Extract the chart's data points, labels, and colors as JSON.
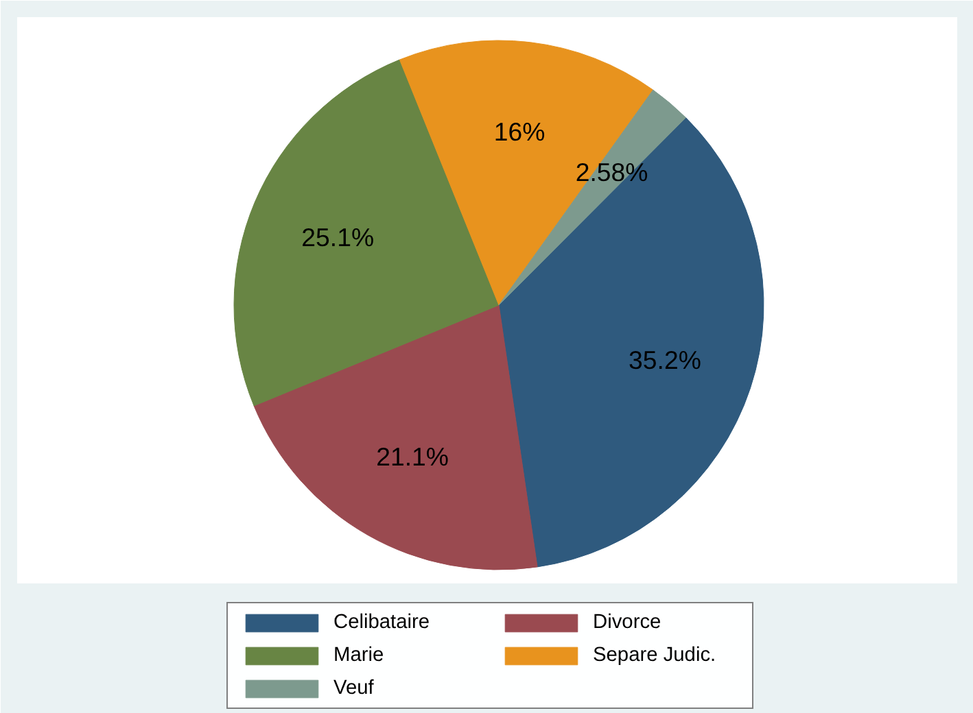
{
  "chart_data": {
    "type": "pie",
    "categories": [
      "Celibataire",
      "Divorce",
      "Marie",
      "Separe Judic.",
      "Veuf"
    ],
    "values": [
      35.2,
      21.1,
      25.1,
      16,
      2.58
    ],
    "value_labels": [
      "35.2%",
      "21.1%",
      "25.1%",
      "16%",
      "2.58%"
    ],
    "colors": [
      "#2f5a7e",
      "#9a4a50",
      "#688544",
      "#e8931e",
      "#7d9a8e"
    ],
    "legend": "bottom"
  }
}
